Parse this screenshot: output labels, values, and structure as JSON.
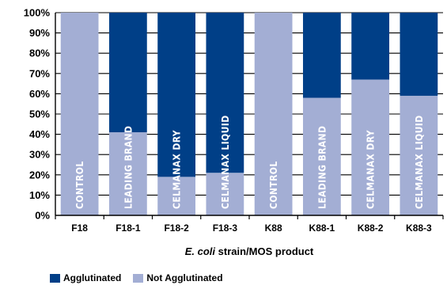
{
  "chart_data": {
    "type": "bar",
    "stacked": true,
    "categories": [
      "F18",
      "F18-1",
      "F18-2",
      "F18-3",
      "K88",
      "K88-1",
      "K88-2",
      "K88-3"
    ],
    "bar_labels": [
      "CONTROL",
      "LEADING BRAND",
      "CELMANAX DRY",
      "CELMANAX LIQUID",
      "CONTROL",
      "LEADING BRAND",
      "CELMANAX DRY",
      "CELMANAX LIQUID"
    ],
    "series": [
      {
        "name": "Not Agglutinated",
        "color": "#a3aed4",
        "values": [
          100,
          41,
          19,
          21,
          100,
          58,
          67,
          59
        ]
      },
      {
        "name": "Agglutinated",
        "color": "#003f87",
        "values": [
          0,
          59,
          81,
          79,
          0,
          42,
          33,
          41
        ]
      }
    ],
    "xlabel_italic": "E. coli",
    "xlabel_rest": " strain/MOS product",
    "ylabel": "",
    "ylim": [
      0,
      100
    ],
    "yticks": [
      "0%",
      "10%",
      "20%",
      "30%",
      "40%",
      "50%",
      "60%",
      "70%",
      "80%",
      "90%",
      "100%"
    ],
    "grid": true,
    "legend_position": "bottom-left"
  },
  "legend": {
    "items": [
      {
        "label": "Agglutinated",
        "color": "#003f87"
      },
      {
        "label": "Not Agglutinated",
        "color": "#a3aed4"
      }
    ]
  }
}
